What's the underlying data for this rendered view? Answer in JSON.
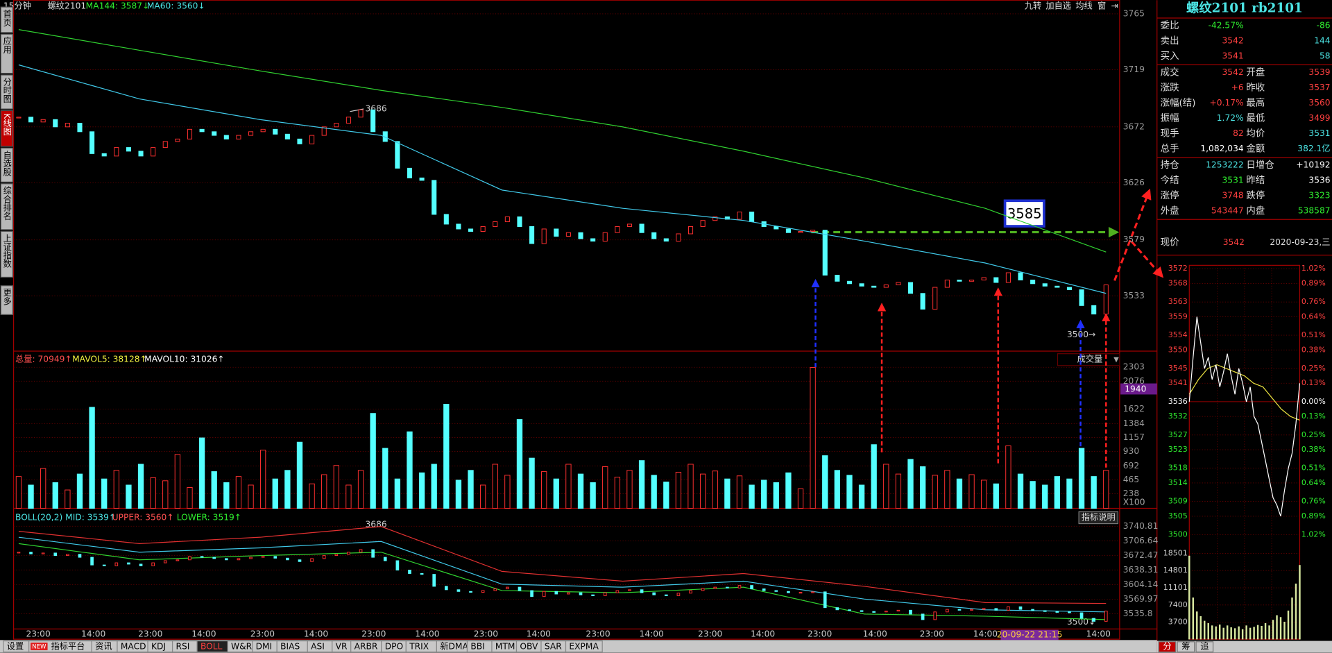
{
  "sidebar_tabs": [
    "首页",
    "应用",
    "分时图",
    "K线图",
    "自选股",
    "综合排名",
    "上证指数",
    "更多"
  ],
  "header": {
    "period": "15分钟",
    "symbol": "螺纹2101",
    "ma144": "MA144: 3587↓",
    "ma60": "MA60: 3560↓"
  },
  "toolbar": [
    "九转",
    "加自选",
    "均线",
    "窗"
  ],
  "main_chart": {
    "ylim": [
      3487.5,
      3770.6
    ],
    "price_ticks": [
      3765,
      3719,
      3672,
      3626,
      3579,
      3533
    ],
    "close": [
      3680,
      3676,
      3678,
      3672,
      3675,
      3668,
      3650,
      3648,
      3655,
      3652,
      3648,
      3655,
      3660,
      3662,
      3670,
      3668,
      3665,
      3662,
      3665,
      3668,
      3670,
      3666,
      3662,
      3658,
      3665,
      3672,
      3675,
      3680,
      3686,
      3668,
      3660,
      3638,
      3630,
      3628,
      3600,
      3592,
      3588,
      3586,
      3590,
      3594,
      3598,
      3590,
      3576,
      3588,
      3582,
      3585,
      3580,
      3578,
      3585,
      3590,
      3592,
      3585,
      3580,
      3578,
      3584,
      3590,
      3595,
      3598,
      3596,
      3602,
      3594,
      3590,
      3588,
      3585,
      3586,
      3587,
      3550,
      3545,
      3543,
      3541,
      3540,
      3542,
      3544,
      3535,
      3522,
      3540,
      3546,
      3545,
      3546,
      3548,
      3544,
      3552,
      3546,
      3543,
      3541,
      3540,
      3538,
      3525,
      3518,
      3542
    ],
    "ma144": [
      3752,
      3735,
      3718,
      3702,
      3688,
      3672,
      3652,
      3630,
      3605,
      3569
    ],
    "ma60": [
      3723,
      3695,
      3678,
      3665,
      3620,
      3605,
      3595,
      3578,
      3560,
      3535
    ],
    "peak_label": "3686",
    "box_label": "3585",
    "low_label": "3500→"
  },
  "volume_chart": {
    "header": [
      "总量: 70949↑",
      "MAVOL5: 38128↑",
      "MAVOL10: 31026↑"
    ],
    "label": "成交量",
    "ylim": [
      0,
      2497
    ],
    "ticks": [
      2303,
      2076,
      1622,
      1384,
      1157,
      930,
      692,
      465,
      238
    ],
    "unit": "X100",
    "cursor_value": "1940",
    "values": [
      520,
      380,
      650,
      420,
      300,
      560,
      1650,
      480,
      620,
      380,
      720,
      500,
      450,
      880,
      340,
      1150,
      600,
      420,
      520,
      380,
      950,
      480,
      620,
      1080,
      400,
      550,
      700,
      380,
      620,
      1550,
      980,
      480,
      1250,
      580,
      720,
      1700,
      460,
      620,
      380,
      720,
      540,
      1450,
      820,
      600,
      480,
      720,
      560,
      420,
      680,
      510,
      620,
      780,
      540,
      430,
      590,
      720,
      560,
      610,
      480,
      530,
      380,
      460,
      420,
      580,
      320,
      2300,
      860,
      620,
      540,
      380,
      1040,
      720,
      560,
      800,
      680,
      540,
      620,
      480,
      550,
      460,
      400,
      1020,
      560,
      440,
      380,
      520,
      480,
      980,
      520,
      620
    ]
  },
  "boll_chart": {
    "header": [
      "BOLL(20,2) MID: 3539↑",
      "UPPER: 3560↑",
      "LOWER: 3519↑"
    ],
    "button": "指标说明",
    "ylim": [
      3500,
      3772.7
    ],
    "ticks": [
      3740.81,
      3706.64,
      3672.47,
      3638.31,
      3604.14,
      3569.97,
      3535.8
    ],
    "upper": [
      3729,
      3700,
      3715,
      3740,
      3635,
      3612,
      3630,
      3600,
      3562,
      3560
    ],
    "mid": [
      3715,
      3680,
      3690,
      3705,
      3605,
      3598,
      3612,
      3570,
      3545,
      3540
    ],
    "lower": [
      3700,
      3662,
      3672,
      3680,
      3590,
      3585,
      3598,
      3535,
      3530,
      3522
    ],
    "peak_label": "3686",
    "low_label": "3500↓"
  },
  "x_axis_labels": [
    "23:00",
    "14:00",
    "23:00",
    "14:00",
    "23:00",
    "14:00",
    "23:00",
    "14:00",
    "23:00",
    "14:00",
    "23:00",
    "14:00",
    "23:00",
    "14:00",
    "23:00",
    "14:00",
    "23:00",
    "14:00",
    "14:00"
  ],
  "cursor_time": "20-09-22 21:15",
  "bottom_tabs": [
    "设置",
    "指标平台",
    "资讯",
    "MACD",
    "KDJ",
    "RSI",
    "BOLL",
    "W&R",
    "DMI",
    "BIAS",
    "ASI",
    "VR",
    "ARBR",
    "DPO",
    "TRIX",
    "新DMA",
    "BBI",
    "MTM",
    "OBV",
    "SAR",
    "EXPMA"
  ],
  "new_badge": "NEW",
  "quote_panel": {
    "title": "螺纹2101 rb2101",
    "rows": [
      {
        "label": "委比",
        "value": "-42.57%",
        "value2": "-86",
        "color": "#2fef2f",
        "color2": "#2fef2f"
      },
      {
        "label": "卖出",
        "value": "3542",
        "value2": "144",
        "color": "#ff4040",
        "color2": "#4ce4e4"
      },
      {
        "label": "买入",
        "value": "3541",
        "value2": "58",
        "color": "#ff4040",
        "color2": "#4ce4e4"
      },
      {
        "label": "成交",
        "value": "3542",
        "label2": "开盘",
        "value2": "3539",
        "color": "#ff4040",
        "color2": "#ff4040"
      },
      {
        "label": "涨跌",
        "value": "+6",
        "label2": "昨收",
        "value2": "3537",
        "color": "#ff4040",
        "color2": "#ff4040"
      },
      {
        "label": "涨幅(结)",
        "value": "+0.17%",
        "label2": "最高",
        "value2": "3560",
        "color": "#ff4040",
        "color2": "#ff4040"
      },
      {
        "label": "振幅",
        "value": "1.72%",
        "label2": "最低",
        "value2": "3499",
        "color": "#4ce4e4",
        "color2": "#ff4040"
      },
      {
        "label": "现手",
        "value": "82",
        "label2": "均价",
        "value2": "3531",
        "color": "#ff4040",
        "color2": "#4ce4e4"
      },
      {
        "label": "总手",
        "value": "1,082,034",
        "label2": "金额",
        "value2": "382.1亿",
        "color": "#ffffff",
        "color2": "#4ce4e4"
      },
      {
        "label": "持仓",
        "value": "1253222",
        "label2": "日增仓",
        "value2": "+10192",
        "color": "#4ce4e4",
        "color2": "#ffffff"
      },
      {
        "label": "今结",
        "value": "3531",
        "label2": "昨结",
        "value2": "3536",
        "color": "#2fef2f",
        "color2": "#ffffff"
      },
      {
        "label": "涨停",
        "value": "3748",
        "label2": "跌停",
        "value2": "3323",
        "color": "#ff4040",
        "color2": "#2fef2f"
      },
      {
        "label": "外盘",
        "value": "543447",
        "label2": "内盘",
        "value2": "538587",
        "color": "#ff4040",
        "color2": "#2fef2f"
      }
    ],
    "last": {
      "label": "现价",
      "value": "3542",
      "date": "2020-09-23,三"
    }
  },
  "intraday": {
    "price_ticks": [
      3572,
      3568,
      3563,
      3559,
      3554,
      3550,
      3545,
      3541,
      3536,
      3532,
      3527,
      3523,
      3518,
      3514,
      3509,
      3505,
      3500
    ],
    "pct_labels": [
      "1.02%",
      "0.89%",
      "0.76%",
      "0.64%",
      "0.51%",
      "0.38%",
      "0.25%",
      "0.13%",
      "0.00%",
      "0.13%",
      "0.25%",
      "0.38%",
      "0.51%",
      "0.64%",
      "0.76%",
      "0.89%",
      "1.02%"
    ],
    "volume_ticks": [
      18501,
      14801,
      11101,
      7400,
      3700
    ],
    "price": [
      3536,
      3548,
      3559,
      3552,
      3545,
      3548,
      3542,
      3546,
      3540,
      3544,
      3549,
      3543,
      3538,
      3545,
      3541,
      3536,
      3540,
      3532,
      3530,
      3525,
      3520,
      3515,
      3510,
      3508,
      3505,
      3512,
      3518,
      3522,
      3530,
      3541
    ],
    "average": [
      3538,
      3542,
      3545,
      3546,
      3545,
      3544,
      3543,
      3541,
      3540,
      3537,
      3534,
      3532,
      3531
    ],
    "volume": [
      18000,
      9000,
      6000,
      5000,
      4000,
      3500,
      3000,
      2800,
      3200,
      2500,
      3000,
      2600,
      2400,
      2800,
      2200,
      3000,
      2500,
      2700,
      3100,
      2900,
      3500,
      3000,
      4200,
      5200,
      4800,
      3800,
      6200,
      9000,
      12000,
      16000
    ],
    "tabs": [
      "分",
      "筹",
      "追"
    ]
  }
}
